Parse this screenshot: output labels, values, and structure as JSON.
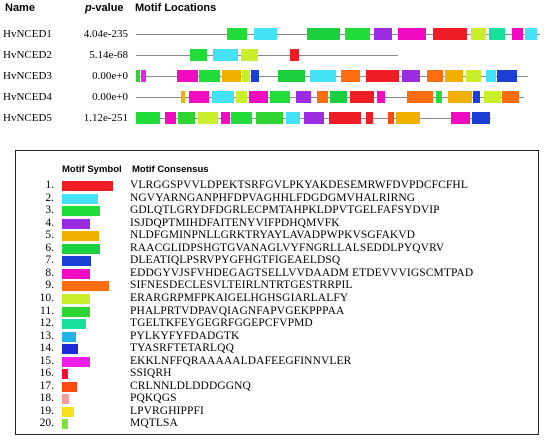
{
  "colors": {
    "1": "#ee1c25",
    "2": "#45e1f5",
    "3": "#22dd39",
    "4": "#9b2ce0",
    "5": "#f1b000",
    "6": "#1bcf3e",
    "7": "#1b3ed4",
    "8": "#f00ac0",
    "9": "#ff6d0e",
    "10": "#c9ee2c",
    "11": "#2ed530",
    "12": "#16e09a",
    "13": "#22b2e9",
    "14": "#1d2ad6",
    "15": "#ee1de8",
    "16": "#f50b33",
    "17": "#ff4a14",
    "18": "#f0a0a0",
    "19": "#f6e21c",
    "20": "#7fe23c"
  },
  "header": {
    "name": "Name",
    "pvalue_italic": "p",
    "pvalue_rest": "-value",
    "motif_locations": "Motif Locations"
  },
  "genes": [
    {
      "name": "HvNCED1",
      "pvalue": "4.04e-235",
      "motifs": [
        {
          "m": 3,
          "s": 227,
          "e": 247
        },
        {
          "m": 2,
          "s": 254,
          "e": 277
        },
        {
          "m": 6,
          "s": 307,
          "e": 340
        },
        {
          "m": 3,
          "s": 345,
          "e": 370
        },
        {
          "m": 4,
          "s": 374,
          "e": 392
        },
        {
          "m": 8,
          "s": 398,
          "e": 426
        },
        {
          "m": 1,
          "s": 433,
          "e": 467
        },
        {
          "m": 10,
          "s": 471,
          "e": 486
        },
        {
          "m": 12,
          "s": 489,
          "e": 505
        },
        {
          "m": 8,
          "s": 512,
          "e": 523
        },
        {
          "m": 2,
          "s": 525,
          "e": 537
        }
      ]
    },
    {
      "name": "HvNCED2",
      "pvalue": "5.14e-68",
      "motifs": [
        {
          "m": 3,
          "s": 190,
          "e": 207
        },
        {
          "m": 2,
          "s": 213,
          "e": 238
        },
        {
          "m": 10,
          "s": 241,
          "e": 258
        },
        {
          "m": 1,
          "s": 290,
          "e": 299
        }
      ]
    },
    {
      "name": "HvNCED3",
      "pvalue": "0.00e+0",
      "motifs": [
        {
          "m": 11,
          "s": 136,
          "e": 140
        },
        {
          "m": 15,
          "s": 141,
          "e": 146
        },
        {
          "m": 8,
          "s": 177,
          "e": 198
        },
        {
          "m": 3,
          "s": 199,
          "e": 220
        },
        {
          "m": 5,
          "s": 222,
          "e": 241
        },
        {
          "m": 10,
          "s": 242,
          "e": 250
        },
        {
          "m": 7,
          "s": 251,
          "e": 259
        },
        {
          "m": 6,
          "s": 278,
          "e": 305
        },
        {
          "m": 2,
          "s": 310,
          "e": 336
        },
        {
          "m": 9,
          "s": 341,
          "e": 360
        },
        {
          "m": 1,
          "s": 366,
          "e": 399
        },
        {
          "m": 4,
          "s": 402,
          "e": 420
        },
        {
          "m": 9,
          "s": 427,
          "e": 443
        },
        {
          "m": 5,
          "s": 445,
          "e": 463
        },
        {
          "m": 10,
          "s": 466,
          "e": 481
        },
        {
          "m": 2,
          "s": 486,
          "e": 496
        },
        {
          "m": 7,
          "s": 497,
          "e": 517
        }
      ]
    },
    {
      "name": "HvNCED4",
      "pvalue": "0.00e+0",
      "motifs": [
        {
          "m": 5,
          "s": 181,
          "e": 185
        },
        {
          "m": 8,
          "s": 189,
          "e": 209
        },
        {
          "m": 2,
          "s": 212,
          "e": 234
        },
        {
          "m": 10,
          "s": 236,
          "e": 247
        },
        {
          "m": 8,
          "s": 249,
          "e": 268
        },
        {
          "m": 3,
          "s": 270,
          "e": 290
        },
        {
          "m": 4,
          "s": 296,
          "e": 311
        },
        {
          "m": 9,
          "s": 317,
          "e": 328
        },
        {
          "m": 6,
          "s": 330,
          "e": 347
        },
        {
          "m": 1,
          "s": 350,
          "e": 374
        },
        {
          "m": 8,
          "s": 377,
          "e": 385
        },
        {
          "m": 9,
          "s": 407,
          "e": 433
        },
        {
          "m": 3,
          "s": 436,
          "e": 442
        },
        {
          "m": 5,
          "s": 448,
          "e": 472
        },
        {
          "m": 7,
          "s": 473,
          "e": 480
        },
        {
          "m": 10,
          "s": 484,
          "e": 501
        },
        {
          "m": 9,
          "s": 502,
          "e": 519
        }
      ]
    },
    {
      "name": "HvNCED5",
      "pvalue": "1.12e-251",
      "motifs": [
        {
          "m": 3,
          "s": 136,
          "e": 160
        },
        {
          "m": 8,
          "s": 165,
          "e": 176
        },
        {
          "m": 11,
          "s": 178,
          "e": 195
        },
        {
          "m": 10,
          "s": 198,
          "e": 218
        },
        {
          "m": 8,
          "s": 221,
          "e": 230
        },
        {
          "m": 3,
          "s": 231,
          "e": 252
        },
        {
          "m": 11,
          "s": 256,
          "e": 283
        },
        {
          "m": 2,
          "s": 286,
          "e": 300
        },
        {
          "m": 4,
          "s": 304,
          "e": 324
        },
        {
          "m": 1,
          "s": 329,
          "e": 361
        },
        {
          "m": 1,
          "s": 366,
          "e": 373
        },
        {
          "m": 17,
          "s": 388,
          "e": 394
        },
        {
          "m": 5,
          "s": 396,
          "e": 420
        },
        {
          "m": 8,
          "s": 451,
          "e": 470
        },
        {
          "m": 7,
          "s": 472,
          "e": 490
        }
      ]
    }
  ],
  "legend": {
    "header_symbol": "Motif Symbol",
    "header_consensus": "Motif Consensus",
    "motifs": [
      {
        "num": "1.",
        "bar": 1.0,
        "consensus": "VLRGGSPVVLDPEKTSRFGVLPKYAKDESEMRWFDVPDCFCFHL"
      },
      {
        "num": "2.",
        "bar": 0.7,
        "consensus": "NGVYARNGANPHFDPVAGHHLFDGDGMVHALRIRNG"
      },
      {
        "num": "3.",
        "bar": 0.75,
        "consensus": "GDLQTLGRYDFDGRLECPMTAHPKLDPVTGELFAFSYDVIP"
      },
      {
        "num": "4.",
        "bar": 0.55,
        "consensus": "ISJDQPTMIHDFAITENYVIFPDHQMVFK"
      },
      {
        "num": "5.",
        "bar": 0.72,
        "consensus": "NLDFGMINPNLLGRKTRYAYLAVADPWPKVSGFAKVD"
      },
      {
        "num": "6.",
        "bar": 0.75,
        "consensus": "RAACGLIDPSHGTGVANAGLVYFNGRLLALSEDDLPYQVRV"
      },
      {
        "num": "7.",
        "bar": 0.57,
        "consensus": "DLEATIQLPSRVPYGFHGTFIGEAELDSQ"
      },
      {
        "num": "8.",
        "bar": 0.55,
        "consensus": "EDDGYVJSFVHDEGAGTSELLVVDAADM ETDEVVVIGSCMTPAD"
      },
      {
        "num": "9.",
        "bar": 0.92,
        "consensus": "SIFNESDECLESVLTEIRLNTRTGESTRRPIL"
      },
      {
        "num": "10.",
        "bar": 0.55,
        "consensus": "ERARGRPMFPKAIGELHGHSGIARLALFY"
      },
      {
        "num": "11.",
        "bar": 0.55,
        "consensus": "PHALPRTVDPAVQIAGNFAPVGEKPPPAA"
      },
      {
        "num": "12.",
        "bar": 0.47,
        "consensus": "TGELTKFEYGEGRFGGEPCFVPMD"
      },
      {
        "num": "13.",
        "bar": 0.28,
        "consensus": "PYLKYFYFDADGTK"
      },
      {
        "num": "14.",
        "bar": 0.31,
        "consensus": "TYASRFTETARLQQ"
      },
      {
        "num": "15.",
        "bar": 0.54,
        "consensus": "EKKLNFFQRAAAAALDAFEEGFINNVLER"
      },
      {
        "num": "16.",
        "bar": 0.12,
        "consensus": "SSIQRH"
      },
      {
        "num": "17.",
        "bar": 0.3,
        "consensus": "CRLNNLDLDDDGGNQ"
      },
      {
        "num": "18.",
        "bar": 0.13,
        "consensus": "PQKQGS"
      },
      {
        "num": "19.",
        "bar": 0.23,
        "consensus": "LPVRGHIPPFI"
      },
      {
        "num": "20.",
        "bar": 0.12,
        "consensus": "MQTLSA"
      }
    ]
  }
}
